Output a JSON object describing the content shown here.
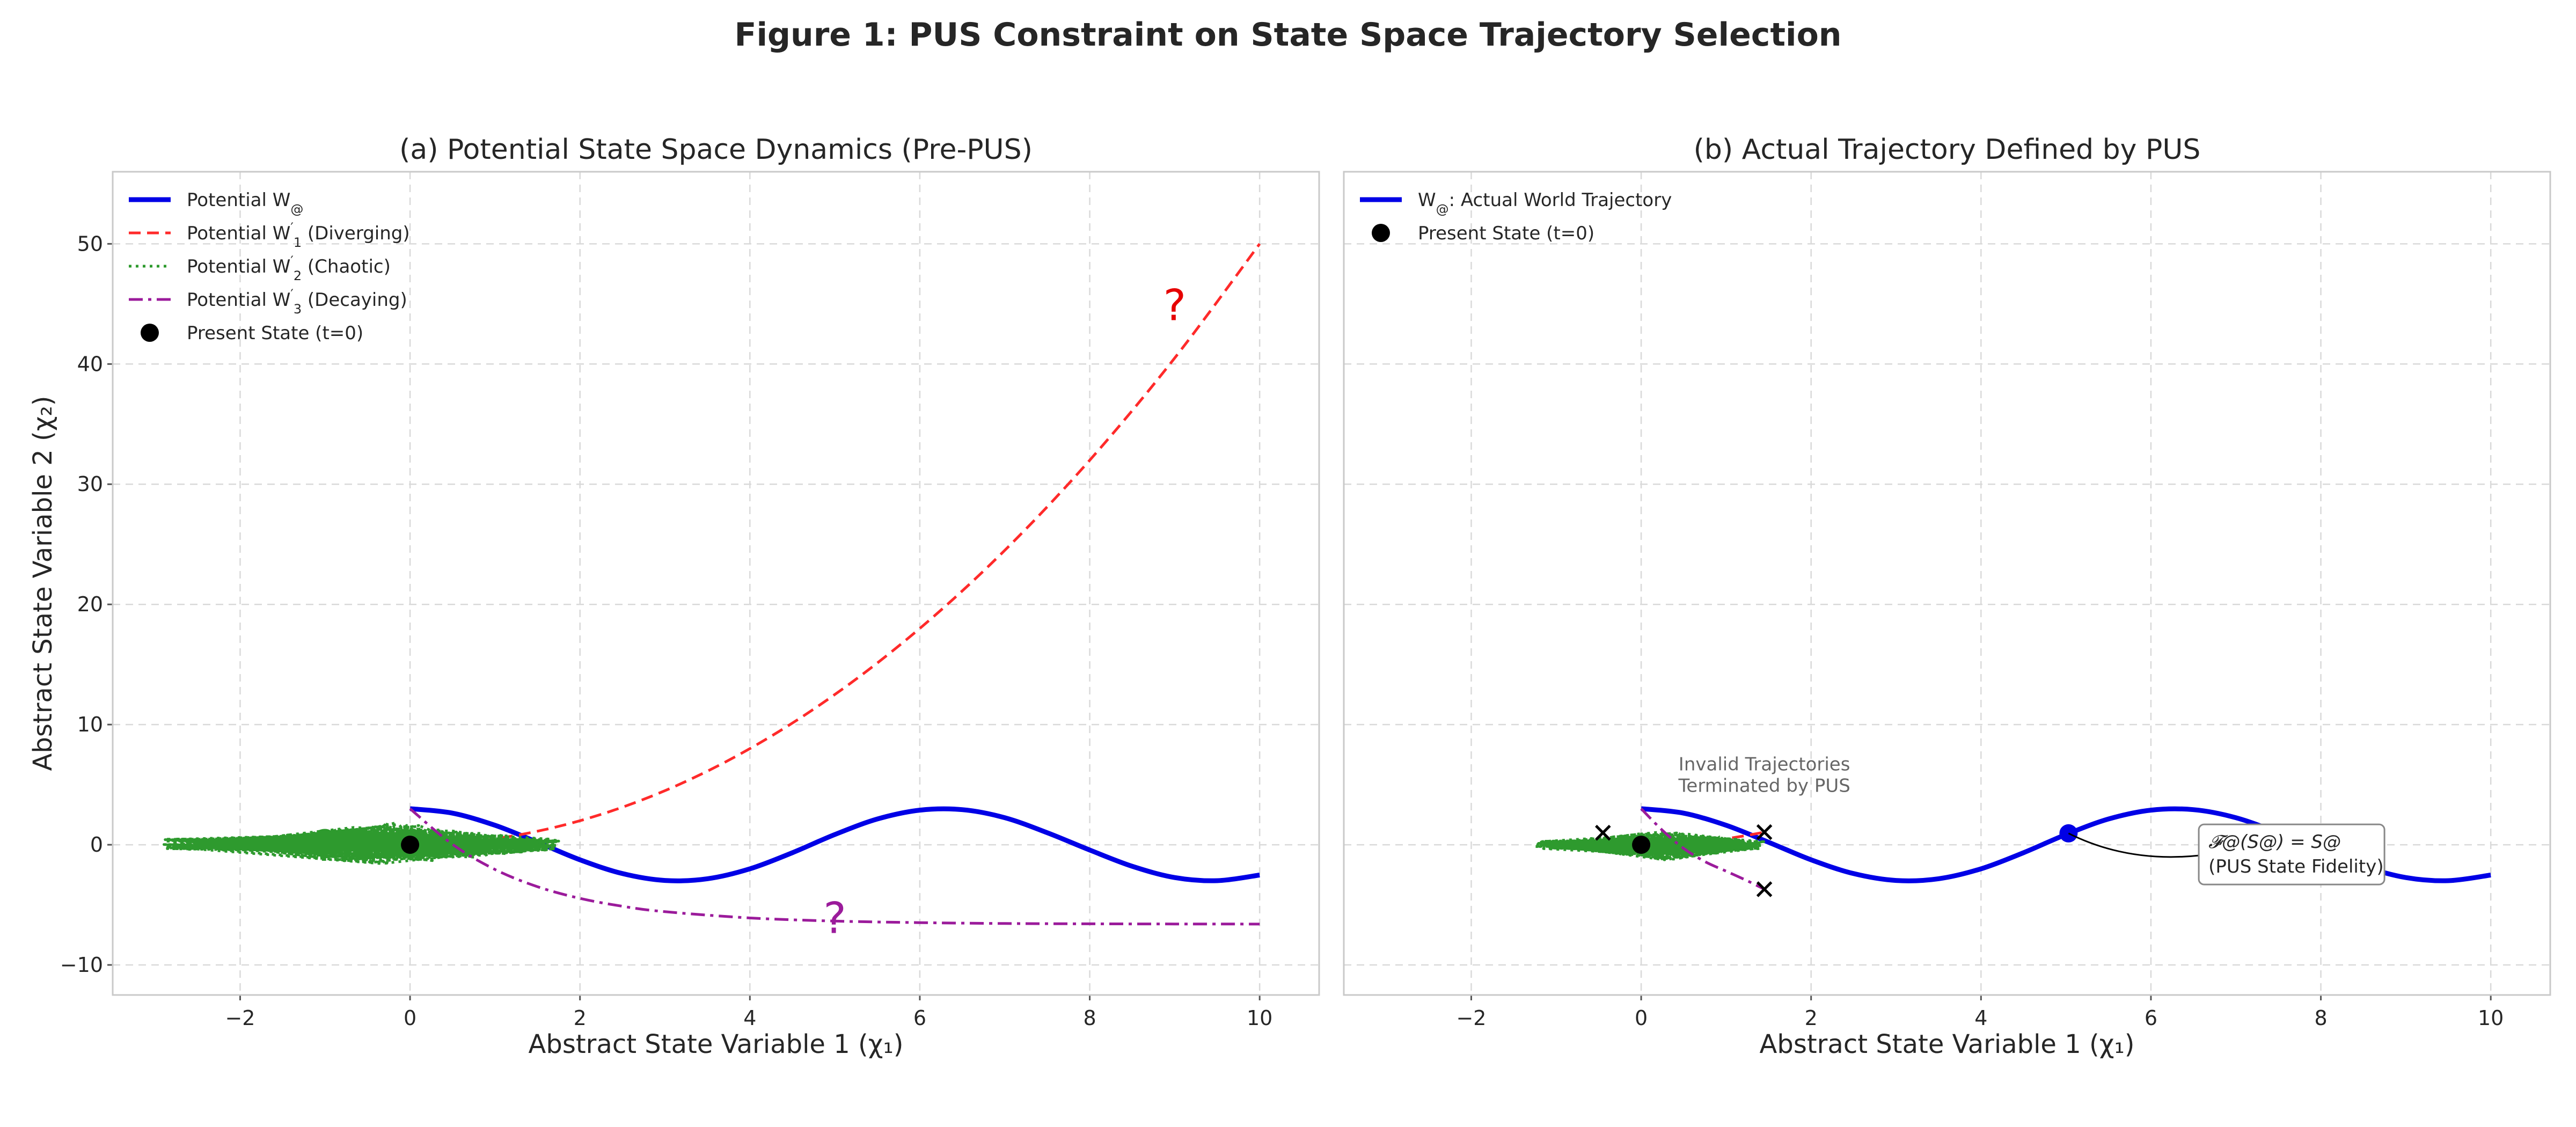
{
  "figure": {
    "suptitle": "Figure 1: PUS Constraint on State Space Trajectory Selection"
  },
  "chart_data": [
    {
      "panel": "a",
      "type": "line",
      "title": "(a) Potential State Space Dynamics (Pre-PUS)",
      "xlabel": "Abstract State Variable 1 (χ₁)",
      "ylabel": "Abstract State Variable 2 (χ₂)",
      "xlim": [
        -3.5,
        10.7
      ],
      "ylim": [
        -12.5,
        56
      ],
      "xticks": [
        -2,
        0,
        2,
        4,
        6,
        8,
        10
      ],
      "yticks": [
        -10,
        0,
        10,
        20,
        30,
        40,
        50
      ],
      "grid": true,
      "legend_position": "top-left",
      "series": [
        {
          "name": "Potential W@",
          "legend_label": "Potential W",
          "legend_sub": "@",
          "color": "#0000e6",
          "style": "solid",
          "x": [
            0,
            0.5,
            1,
            1.5,
            2,
            2.5,
            3,
            3.5,
            4,
            4.5,
            5,
            5.5,
            6,
            6.5,
            7,
            7.5,
            8,
            8.5,
            9,
            9.5,
            10
          ],
          "y": [
            3.0,
            2.63,
            1.62,
            0.21,
            -1.25,
            -2.4,
            -2.97,
            -2.83,
            -2.0,
            -0.66,
            0.85,
            2.14,
            2.88,
            2.92,
            2.25,
            1.0,
            -0.44,
            -1.79,
            -2.73,
            -2.99,
            -2.52
          ]
        },
        {
          "name": "Potential W'1 (Diverging)",
          "legend_label": "Potential W",
          "legend_sup": "′",
          "legend_sub": "1",
          "legend_suffix": " (Diverging)",
          "color": "#ff2a2a",
          "style": "dashed",
          "x": [
            0,
            1,
            2,
            3,
            4,
            5,
            6,
            7,
            8,
            9,
            10
          ],
          "y": [
            0,
            0.5,
            2.0,
            4.5,
            8.0,
            12.5,
            18.0,
            24.5,
            32.0,
            40.5,
            50.0
          ]
        },
        {
          "name": "Potential W'2 (Chaotic)",
          "legend_label": "Potential W",
          "legend_sup": "′",
          "legend_sub": "2",
          "legend_suffix": " (Chaotic)",
          "color": "#2e9a2e",
          "style": "dotted",
          "x_range": [
            -2.9,
            1.75
          ],
          "y_range": [
            -1.8,
            1.9
          ]
        },
        {
          "name": "Potential W'3 (Decaying)",
          "legend_label": "Potential W",
          "legend_sup": "′",
          "legend_sub": "3",
          "legend_suffix": " (Decaying)",
          "color": "#9b1b9b",
          "style": "dashdot",
          "x": [
            0,
            0.5,
            1,
            1.5,
            2,
            2.5,
            3,
            4,
            5,
            6,
            7,
            8,
            9,
            10
          ],
          "y": [
            3.0,
            0.03,
            -2.06,
            -3.49,
            -4.46,
            -5.12,
            -5.57,
            -6.09,
            -6.35,
            -6.48,
            -6.55,
            -6.58,
            -6.59,
            -6.6
          ]
        }
      ],
      "points": [
        {
          "name": "Present State (t=0)",
          "x": 0,
          "y": 0,
          "color": "#000000"
        }
      ],
      "annotations": [
        {
          "text": "?",
          "x": 9.0,
          "y": 45,
          "color": "#e60000"
        },
        {
          "text": "?",
          "x": -1.0,
          "y": 0,
          "color": "#2e9a2e"
        },
        {
          "text": "?",
          "x": 5.0,
          "y": -6,
          "color": "#9b1b9b"
        }
      ]
    },
    {
      "panel": "b",
      "type": "line",
      "title": "(b) Actual Trajectory Defined by PUS",
      "xlabel": "Abstract State Variable 1 (χ₁)",
      "ylabel": "",
      "xlim": [
        -3.5,
        10.7
      ],
      "ylim": [
        -12.5,
        56
      ],
      "xticks": [
        -2,
        0,
        2,
        4,
        6,
        8,
        10
      ],
      "yticks": [
        -10,
        0,
        10,
        20,
        30,
        40,
        50
      ],
      "grid": true,
      "legend_position": "top-left",
      "series": [
        {
          "name": "W@: Actual World Trajectory",
          "legend_label": "W",
          "legend_sub": "@",
          "legend_suffix": ": Actual World Trajectory",
          "color": "#0000e6",
          "style": "solid",
          "x": [
            0,
            0.5,
            1,
            1.5,
            2,
            2.5,
            3,
            3.5,
            4,
            4.5,
            5,
            5.5,
            6,
            6.5,
            7,
            7.5,
            8,
            8.5,
            9,
            9.5,
            10
          ],
          "y": [
            3.0,
            2.63,
            1.62,
            0.21,
            -1.25,
            -2.4,
            -2.97,
            -2.83,
            -2.0,
            -0.66,
            0.85,
            2.14,
            2.88,
            2.92,
            2.25,
            1.0,
            -0.44,
            -1.79,
            -2.73,
            -2.99,
            -2.52
          ]
        },
        {
          "name": "terminated diverging",
          "color": "#ff2a2a",
          "style": "dashed",
          "x": [
            0,
            0.3,
            0.6,
            0.9,
            1.2,
            1.45
          ],
          "y": [
            0,
            0.05,
            0.18,
            0.4,
            0.72,
            1.05
          ]
        },
        {
          "name": "terminated chaotic",
          "color": "#2e9a2e",
          "style": "dotted",
          "x_range": [
            -1.25,
            1.45
          ],
          "y_range": [
            -1.3,
            1.2
          ]
        },
        {
          "name": "terminated decaying",
          "color": "#9b1b9b",
          "style": "dashdot",
          "x": [
            0,
            0.25,
            0.5,
            0.75,
            1.0,
            1.25,
            1.45
          ],
          "y": [
            3.0,
            1.2,
            -0.3,
            -1.4,
            -2.2,
            -3.0,
            -3.7
          ]
        }
      ],
      "points": [
        {
          "name": "Present State (t=0)",
          "x": 0,
          "y": 0,
          "color": "#000000"
        },
        {
          "name": "fidelity point",
          "x": 5.03,
          "y": 0.95,
          "color": "#0000e6"
        }
      ],
      "terminations": [
        {
          "x": 1.45,
          "y": 1.05
        },
        {
          "x": 1.45,
          "y": -3.7
        },
        {
          "x": -0.45,
          "y": 1.0
        }
      ],
      "annotations": [
        {
          "text_line1": "Invalid Trajectories",
          "text_line2": "Terminated by PUS",
          "x": 1.45,
          "y": 4.5
        },
        {
          "text_line1": "𝓕@(S@) = S@",
          "text_line2": "(PUS State Fidelity)",
          "x": 6.5,
          "y": 0
        }
      ]
    }
  ]
}
